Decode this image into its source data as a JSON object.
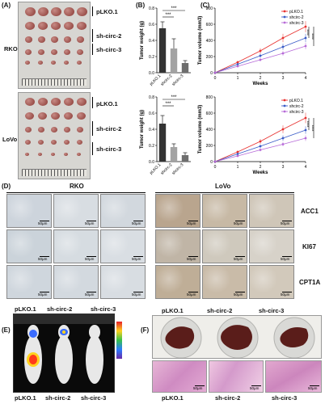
{
  "panels": {
    "A": "(A)",
    "B": "(B)",
    "C": "(C)",
    "D": "(D)",
    "E": "(E)",
    "F": "(F)"
  },
  "groups": {
    "g1": "pLKO.1",
    "g2": "sh-circ-2",
    "g3": "sh-circ-3"
  },
  "cells": {
    "rko": "RKO",
    "lovo": "LoVo"
  },
  "stains": {
    "acc1": "ACC1",
    "ki67": "KI67",
    "cpt1a": "CPT1A"
  },
  "scale_label": "50μm",
  "colors": {
    "g1": "#e8312f",
    "g2": "#3a5bc7",
    "g3": "#b76bd8",
    "bar1": "#333333",
    "bar2": "#a3a3a3",
    "bar3": "#6e6e6e"
  },
  "chart_data": [
    {
      "type": "bar",
      "cell": "RKO",
      "categories": [
        "pLKO.1",
        "shcirc-2",
        "shcirc-3"
      ],
      "values": [
        0.55,
        0.3,
        0.12
      ],
      "errors": [
        0.08,
        0.12,
        0.03
      ],
      "ylabel": "Tumor weight (g)",
      "ylim": [
        0,
        0.8
      ],
      "yticks": [
        0.0,
        0.2,
        0.4,
        0.6,
        0.8
      ],
      "significance": [
        "***",
        "***"
      ]
    },
    {
      "type": "line",
      "cell": "RKO",
      "x": [
        0,
        1,
        2,
        3,
        4
      ],
      "xlabel": "Weeks",
      "ylabel": "Tumor volume (mm3)",
      "ylim": [
        0,
        800
      ],
      "yticks": [
        0,
        200,
        400,
        600,
        800
      ],
      "series": [
        {
          "name": "pLKO.1",
          "values": [
            0,
            130,
            270,
            430,
            570
          ]
        },
        {
          "name": "shcirc-2",
          "values": [
            0,
            105,
            210,
            320,
            430
          ]
        },
        {
          "name": "shcirc-3",
          "values": [
            0,
            80,
            160,
            240,
            330
          ]
        }
      ],
      "significance": [
        "****",
        "****"
      ]
    },
    {
      "type": "bar",
      "cell": "LoVo",
      "categories": [
        "pLKO.1",
        "shcirc-2",
        "shcirc-3"
      ],
      "values": [
        0.47,
        0.18,
        0.08
      ],
      "errors": [
        0.1,
        0.04,
        0.03
      ],
      "ylabel": "Tumor weight (g)",
      "ylim": [
        0,
        0.8
      ],
      "yticks": [
        0.0,
        0.2,
        0.4,
        0.6,
        0.8
      ],
      "significance": [
        "***",
        "***"
      ]
    },
    {
      "type": "line",
      "cell": "LoVo",
      "x": [
        0,
        1,
        2,
        3,
        4
      ],
      "xlabel": "Weeks",
      "ylabel": "Tumor volume (mm3)",
      "ylim": [
        0,
        800
      ],
      "yticks": [
        0,
        200,
        400,
        600,
        800
      ],
      "series": [
        {
          "name": "pLKO.1",
          "values": [
            0,
            120,
            250,
            400,
            540
          ]
        },
        {
          "name": "shcirc-2",
          "values": [
            0,
            95,
            190,
            290,
            390
          ]
        },
        {
          "name": "shcirc-3",
          "values": [
            0,
            70,
            145,
            215,
            290
          ]
        }
      ],
      "significance": [
        "****",
        "****"
      ]
    }
  ]
}
